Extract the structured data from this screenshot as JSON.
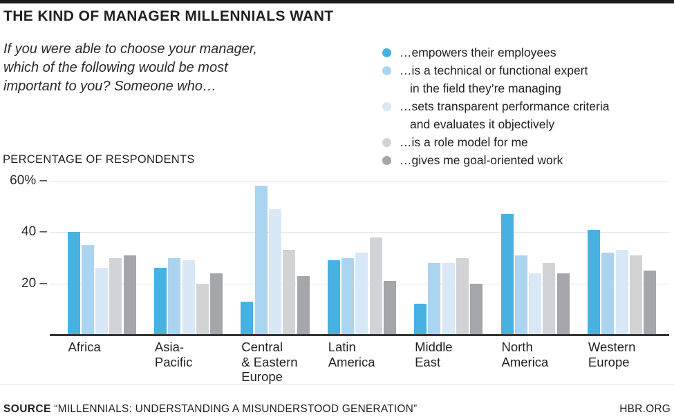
{
  "header": {
    "title": "THE KIND OF MANAGER MILLENNIALS WANT",
    "subtitle_lines": [
      "If you were able to choose your manager,",
      "which of the following would be most",
      "important to you? Someone who…"
    ]
  },
  "legend": {
    "items": [
      {
        "color": "#47b2e2",
        "lines": [
          "…empowers their employees"
        ]
      },
      {
        "color": "#abd4f0",
        "lines": [
          "…is a technical or functional expert",
          "in the field they’re managing"
        ]
      },
      {
        "color": "#d9e8f7",
        "lines": [
          "…sets transparent performance criteria",
          "and evaluates it objectively"
        ]
      },
      {
        "color": "#d2d3d5",
        "lines": [
          "…is a role model for me"
        ]
      },
      {
        "color": "#a4a6a9",
        "lines": [
          "…gives me goal-oriented work"
        ]
      }
    ]
  },
  "axis": {
    "yticks": [
      {
        "value": 60,
        "label": "60% –"
      },
      {
        "value": 40,
        "label": "40 –"
      },
      {
        "value": 20,
        "label": "20 –"
      }
    ]
  },
  "chart_data": {
    "type": "bar",
    "title": "THE KIND OF MANAGER MILLENNIALS WANT",
    "ylabel": "PERCENTAGE OF RESPONDENTS",
    "xlabel": "",
    "ylim": [
      0,
      60
    ],
    "grid": true,
    "legend_position": "top-right",
    "categories": [
      "Africa",
      "Asia-Pacific",
      "Central & Eastern Europe",
      "Latin America",
      "Middle East",
      "North America",
      "Western Europe"
    ],
    "category_lines": [
      [
        "Africa"
      ],
      [
        "Asia-",
        "Pacific"
      ],
      [
        "Central",
        "& Eastern",
        "Europe"
      ],
      [
        "Latin",
        "America"
      ],
      [
        "Middle",
        "East"
      ],
      [
        "North",
        "America"
      ],
      [
        "Western",
        "Europe"
      ]
    ],
    "series": [
      {
        "name": "…empowers their employees",
        "color": "#47b2e2",
        "values": [
          40,
          26,
          13,
          29,
          12,
          47,
          41
        ]
      },
      {
        "name": "…is a technical or functional expert in the field they’re managing",
        "color": "#abd4f0",
        "values": [
          35,
          30,
          58,
          30,
          28,
          31,
          32
        ]
      },
      {
        "name": "…sets transparent performance criteria and evaluates it objectively",
        "color": "#d9e8f7",
        "values": [
          26,
          29,
          49,
          32,
          28,
          24,
          33
        ]
      },
      {
        "name": "…is a role model for me",
        "color": "#d2d3d5",
        "values": [
          30,
          20,
          33,
          38,
          30,
          28,
          31
        ]
      },
      {
        "name": "…gives me goal-oriented work",
        "color": "#a4a6a9",
        "values": [
          31,
          24,
          23,
          21,
          20,
          24,
          25
        ]
      }
    ]
  },
  "footer": {
    "source_label": "SOURCE",
    "source_text": "“MILLENNIALS: UNDERSTANDING A MISUNDERSTOOD GENERATION”",
    "site": "HBR.ORG"
  }
}
